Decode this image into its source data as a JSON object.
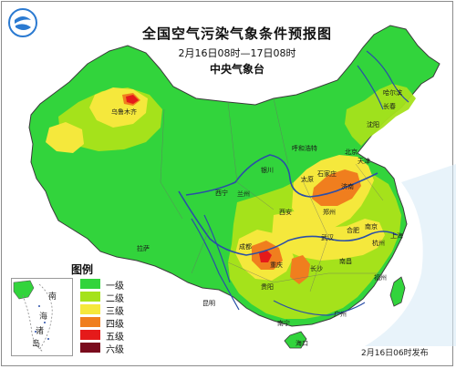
{
  "map": {
    "title": "全国空气污染气象条件预报图",
    "subtitle": "2月16日08时—17日08时",
    "agency": "中央气象台",
    "issued": "2月16日06时发布",
    "legend": {
      "title": "图例",
      "items": [
        {
          "label": "一级",
          "color": "#32d43c"
        },
        {
          "label": "二级",
          "color": "#a5e21b"
        },
        {
          "label": "三级",
          "color": "#f5e83c"
        },
        {
          "label": "四级",
          "color": "#f07e1e"
        },
        {
          "label": "五级",
          "color": "#e51a1a"
        },
        {
          "label": "六级",
          "color": "#7a0b1d"
        }
      ]
    },
    "inset_labels": [
      "南",
      "海",
      "诸",
      "岛"
    ],
    "cities": [
      "乌鲁木齐",
      "哈尔滨",
      "长春",
      "沈阳",
      "呼和浩特",
      "北京",
      "天津",
      "石家庄",
      "太原",
      "济南",
      "银川",
      "西宁",
      "兰州",
      "郑州",
      "西安",
      "合肥",
      "南京",
      "上海",
      "杭州",
      "武汉",
      "成都",
      "重庆",
      "长沙",
      "南昌",
      "福州",
      "贵阳",
      "昆明",
      "南宁",
      "广州",
      "海口",
      "拉萨"
    ],
    "colors": {
      "sea": "#ffffff",
      "ocean_rim": "#cfe6f5",
      "land_outside": "#ffffff",
      "rivers": "#2a4ea8",
      "border": "#3a3a3a"
    }
  }
}
